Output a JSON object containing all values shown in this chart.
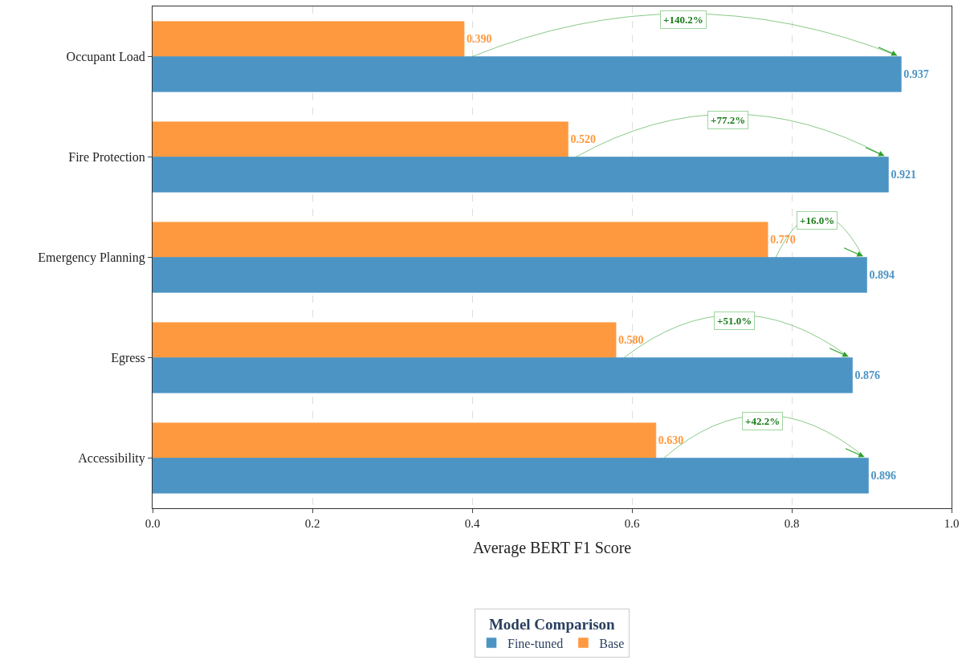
{
  "chart_data": {
    "type": "bar",
    "orientation": "horizontal",
    "categories": [
      "Occupant Load",
      "Fire Protection",
      "Emergency Planning",
      "Egress",
      "Accessibility"
    ],
    "series": [
      {
        "name": "Base",
        "color": "#ff993f",
        "values": [
          0.39,
          0.52,
          0.77,
          0.58,
          0.63
        ],
        "value_labels": [
          "0.390",
          "0.520",
          "0.770",
          "0.580",
          "0.630"
        ]
      },
      {
        "name": "Fine-tuned",
        "color": "#4c94c4",
        "values": [
          0.937,
          0.921,
          0.894,
          0.876,
          0.896
        ],
        "value_labels": [
          "0.937",
          "0.921",
          "0.894",
          "0.876",
          "0.896"
        ]
      }
    ],
    "xlabel": "Average BERT F1 Score",
    "xlim": [
      0,
      1
    ],
    "xticks": [
      {
        "value": 0,
        "label": "0.0"
      },
      {
        "value": 0.2,
        "label": "0.2"
      },
      {
        "value": 0.4,
        "label": "0.4"
      },
      {
        "value": 0.6,
        "label": "0.6"
      },
      {
        "value": 0.8,
        "label": "0.8"
      },
      {
        "value": 1,
        "label": "1.0"
      }
    ],
    "grid": "x",
    "legend": "bottom",
    "legend_title": "Model Comparison",
    "annotations": [
      {
        "text": "+140.2%",
        "x": 0.664,
        "y": "Occupant Load"
      },
      {
        "text": "+77.2%",
        "x": 0.72,
        "y": "Fire Protection"
      },
      {
        "text": "+16.0%",
        "x": 0.832,
        "y": "Emergency Planning"
      },
      {
        "text": "+51.0%",
        "x": 0.728,
        "y": "Egress"
      },
      {
        "text": "+42.2%",
        "x": 0.763,
        "y": "Accessibility"
      }
    ]
  }
}
